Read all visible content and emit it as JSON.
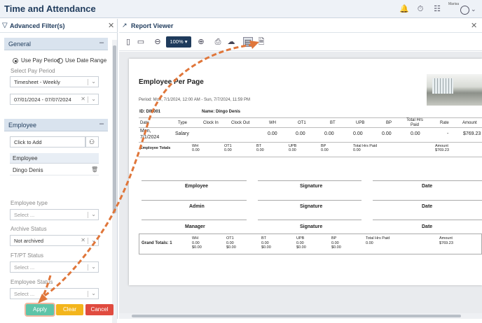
{
  "app": {
    "title": "Time and Attendance",
    "user": "Marisa"
  },
  "left": {
    "title": "Advanced Filter(s)",
    "general": {
      "label": "General",
      "opt1": "Use Pay Period",
      "opt2": "Use Date Range",
      "pay_period_label": "Select Pay Period",
      "pay_period_value": "Timesheet - Weekly",
      "date_value": "07/01/2024 - 07/07/2024"
    },
    "employee": {
      "label": "Employee",
      "click_to_add": "Click to Add",
      "list_header": "Employee",
      "selected": "Dingo Denis"
    },
    "fields": [
      {
        "label": "Employee type",
        "value": "Select ..."
      },
      {
        "label": "Archive Status",
        "value": "Not archived"
      },
      {
        "label": "FT/PT Status",
        "value": "Select ..."
      },
      {
        "label": "Employee Status",
        "value": "Select ..."
      }
    ],
    "buttons": {
      "apply": "Apply",
      "clear": "Clear",
      "cancel": "Cancel"
    }
  },
  "viewer": {
    "title": "Report Viewer",
    "zoom": "100%"
  },
  "report": {
    "title": "Employee Per Page",
    "period": "Period: Mon, 7/1/2024, 12:00 AM - Sun, 7/7/2024, 11:59 PM",
    "id": "ID: DIN001",
    "name": "Name: Dingo Denis",
    "columns": [
      "Date",
      "Type",
      "Clock In",
      "Clock Out",
      "WH",
      "OT1",
      "BT",
      "UPB",
      "BP",
      "Total Hrs Paid",
      "Rate",
      "Amount"
    ],
    "row": {
      "date1": "Mon,",
      "date2": "7/1/2024",
      "type": "Salary",
      "wh": "0.00",
      "ot1": "0.00",
      "bt": "0.00",
      "upb": "0.00",
      "bp": "0.00",
      "total": "0.00",
      "rate": "-",
      "amount": "$769.23"
    },
    "totals_label": "Employee Totals",
    "totals": [
      {
        "h": "WH",
        "v": "0.00"
      },
      {
        "h": "OT1",
        "v": "0.00"
      },
      {
        "h": "BT",
        "v": "0.00"
      },
      {
        "h": "UPB",
        "v": "0.00"
      },
      {
        "h": "BP",
        "v": "0.00"
      },
      {
        "h": "Total Hrs Paid",
        "v": "0.00"
      },
      {
        "h": "Amount",
        "v": "$769.23"
      }
    ],
    "sig": [
      {
        "a": "Employee",
        "b": "Signature",
        "c": "Date"
      },
      {
        "a": "Admin",
        "b": "Signature",
        "c": "Date"
      },
      {
        "a": "Manager",
        "b": "Signature",
        "c": "Date"
      }
    ],
    "grand_label": "Grand Totals: 1",
    "grand": [
      {
        "h": "WH",
        "v1": "0.00",
        "v2": "$0.00"
      },
      {
        "h": "OT1",
        "v1": "0.00",
        "v2": "$0.00"
      },
      {
        "h": "BT",
        "v1": "0.00",
        "v2": "$0.00"
      },
      {
        "h": "UPB",
        "v1": "0.00",
        "v2": "$0.00"
      },
      {
        "h": "BP",
        "v1": "0.00",
        "v2": "$0.00"
      },
      {
        "h": "Total Hrs Paid",
        "v1": "0.00",
        "v2": ""
      },
      {
        "h": "Amount",
        "v1": "$769.23",
        "v2": ""
      }
    ]
  },
  "colors": {
    "accent": "#1f3b5c",
    "apply": "#5ec4a8",
    "clear": "#f3b51c",
    "cancel": "#e04b3f",
    "annotation": "#e0763a"
  }
}
